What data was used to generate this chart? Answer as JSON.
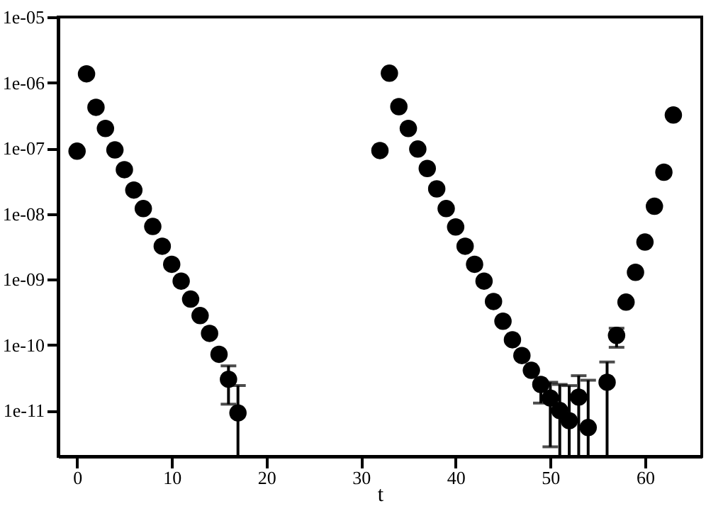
{
  "chart_data": {
    "type": "scatter",
    "xlabel": "t",
    "x": [
      0,
      1,
      2,
      3,
      4,
      5,
      6,
      7,
      8,
      9,
      10,
      11,
      12,
      13,
      14,
      15,
      16,
      17,
      32,
      33,
      34,
      35,
      36,
      37,
      38,
      39,
      40,
      41,
      42,
      43,
      44,
      45,
      46,
      47,
      48,
      49,
      50,
      51,
      52,
      53,
      54,
      56,
      57,
      58,
      59,
      60,
      61,
      62,
      63
    ],
    "series": [
      {
        "color": "#000000",
        "values": [
          9e-08,
          1.36e-06,
          4.2e-07,
          2e-07,
          9.4e-08,
          4.7e-08,
          2.3e-08,
          1.2e-08,
          6.4e-09,
          3.2e-09,
          1.7e-09,
          9.4e-10,
          5e-10,
          2.8e-10,
          1.5e-10,
          7.2e-11,
          3e-11,
          9.2e-12,
          9.2e-08,
          1.39e-06,
          4.3e-07,
          2e-07,
          9.7e-08,
          4.9e-08,
          2.4e-08,
          1.2e-08,
          6.3e-09,
          3.2e-09,
          1.7e-09,
          9.4e-10,
          4.6e-10,
          2.3e-10,
          1.2e-10,
          6.9e-11,
          4.1e-11,
          2.5e-11,
          1.55e-11,
          1e-11,
          7e-12,
          1.6e-11,
          5.5e-12,
          2.7e-11,
          1.4e-10,
          4.5e-10,
          1.28e-09,
          3.7e-09,
          1.3e-08,
          4.3e-08,
          3.2e-07
        ],
        "errors": [
          null,
          null,
          null,
          null,
          null,
          null,
          null,
          null,
          null,
          null,
          null,
          null,
          null,
          null,
          null,
          null,
          [
            1.25e-11,
            4.8e-11
          ],
          [
            2e-12,
            2.4e-11
          ],
          null,
          null,
          null,
          null,
          null,
          null,
          null,
          null,
          null,
          null,
          null,
          null,
          null,
          null,
          null,
          null,
          null,
          [
            1.3e-11,
            2.5e-11
          ],
          [
            2.8e-12,
            2.7e-11
          ],
          [
            2e-12,
            2.5e-11
          ],
          [
            2e-12,
            2.4e-11
          ],
          [
            2e-12,
            3.4e-11
          ],
          [
            2e-12,
            2.9e-11
          ],
          [
            2e-12,
            5.5e-11
          ],
          [
            9.2e-11,
            1.8e-10
          ],
          null,
          null,
          null,
          null,
          null,
          null
        ]
      }
    ],
    "xlim": [
      -2,
      66
    ],
    "xticks": [
      0,
      10,
      20,
      30,
      40,
      50,
      60
    ],
    "ylim": [
      2e-12,
      1e-05
    ],
    "log": true,
    "yticks": [
      {
        "value": 1e-11,
        "label": "1e-11"
      },
      {
        "value": 1e-10,
        "label": "1e-10"
      },
      {
        "value": 1e-09,
        "label": "1e-09"
      },
      {
        "value": 1e-08,
        "label": "1e-08"
      },
      {
        "value": 1e-07,
        "label": "1e-07"
      },
      {
        "value": 1e-06,
        "label": "1e-06"
      },
      {
        "value": 1e-05,
        "label": "1e-05"
      }
    ],
    "grid": false,
    "marker": "circle"
  }
}
